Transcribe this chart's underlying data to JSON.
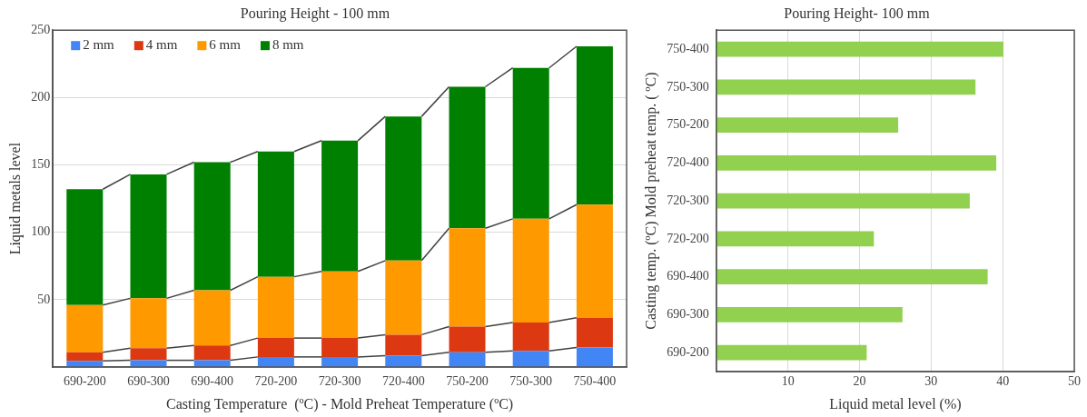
{
  "chart_data": [
    {
      "type": "bar",
      "title": "Pouring Height - 100 mm",
      "xlabel": "Casting Temperature  (ºC) - Mold Preheat Temperature (ºC)",
      "ylabel": "Liquid metals level",
      "categories": [
        "690-200",
        "690-300",
        "690-400",
        "720-200",
        "720-300",
        "720-400",
        "750-200",
        "750-300",
        "750-400"
      ],
      "stacked": true,
      "series": [
        {
          "name": "2 mm",
          "color": "#4285f4",
          "values": [
            4.5,
            5,
            5,
            7.5,
            7.5,
            8.5,
            11,
            12,
            14.5
          ]
        },
        {
          "name": "4 mm",
          "color": "#dc3912",
          "values": [
            6.5,
            9,
            11,
            14,
            14,
            15.5,
            19,
            21,
            22
          ]
        },
        {
          "name": "6 mm",
          "color": "#ff9900",
          "values": [
            35,
            37,
            41,
            45.5,
            49.5,
            55,
            73,
            77,
            84
          ]
        },
        {
          "name": "8 mm",
          "color": "#008000",
          "values": [
            86,
            92,
            95,
            93,
            97,
            107,
            105,
            112,
            117.5
          ]
        }
      ],
      "ylim": [
        0,
        250
      ],
      "yticks": [
        50,
        100,
        150,
        200,
        250
      ],
      "grid": "y",
      "legend": "top left"
    },
    {
      "type": "bar",
      "orientation": "horizontal",
      "title": "Pouring Height- 100 mm",
      "xlabel": "Liquid metal level (%)",
      "ylabel": "Casting temp. (ºC) Mold preheat temp. ( ºC)",
      "categories": [
        "750-400",
        "750-300",
        "750-200",
        "720-400",
        "720-300",
        "720-200",
        "690-400",
        "690-300",
        "690-200"
      ],
      "values": [
        40.1,
        36.2,
        25.4,
        39.1,
        35.4,
        22,
        37.9,
        26,
        21
      ],
      "color": "#92d050",
      "xlim": [
        0,
        50
      ],
      "xticks": [
        10,
        20,
        30,
        40,
        50
      ],
      "grid": "x"
    }
  ]
}
